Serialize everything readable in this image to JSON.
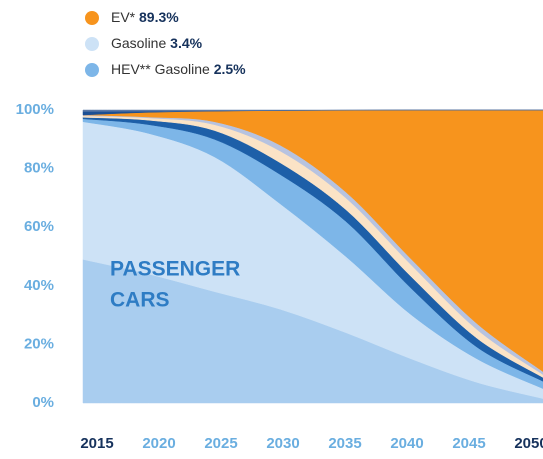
{
  "chart_data": {
    "type": "stacked_area",
    "categories": [
      "2015",
      "2020",
      "2025",
      "2030",
      "2035",
      "2040",
      "2045",
      "2050"
    ],
    "annotation": [
      "PASSENGER",
      "CARS"
    ],
    "ylim": [
      0,
      100
    ],
    "yticks": [
      {
        "value": 0,
        "label": "0%"
      },
      {
        "value": 20,
        "label": "20%"
      },
      {
        "value": 40,
        "label": "40%"
      },
      {
        "value": 60,
        "label": "60%"
      },
      {
        "value": 80,
        "label": "80%"
      },
      {
        "value": 100,
        "label": "100%"
      }
    ],
    "legend_order": [
      6,
      1,
      2
    ],
    "series": [
      {
        "color": "#a9cdef",
        "values": [
          49,
          44,
          38,
          32,
          24,
          15,
          7,
          1.5
        ]
      },
      {
        "name": "Gasoline",
        "legend_label": "3.4%",
        "color": "#cde2f6",
        "values": [
          47,
          48,
          46,
          36,
          26,
          15,
          8,
          3.4
        ]
      },
      {
        "name": "HEV** Gasoline",
        "legend_label": "2.5%",
        "color": "#7db6e8",
        "values": [
          1,
          3,
          6,
          10,
          12,
          9,
          4,
          2.5
        ]
      },
      {
        "color": "#1d5fa8",
        "values": [
          0.5,
          1.5,
          3,
          4,
          4,
          4,
          3,
          1.3
        ]
      },
      {
        "color": "#fbe3c6",
        "values": [
          0.5,
          0.8,
          2,
          4,
          4,
          4,
          3,
          1.0
        ]
      },
      {
        "color": "#b7c3e0",
        "values": [
          0.3,
          0.3,
          1,
          2,
          2,
          2,
          2,
          1.0
        ]
      },
      {
        "name": "EV*",
        "legend_label": "89.3%",
        "color": "#f7941d",
        "values": [
          0,
          1.6,
          3.6,
          11.8,
          27.9,
          51,
          73,
          89.3
        ]
      },
      {
        "color": "#1b4f94",
        "values": [
          1.2,
          0.4,
          0.1,
          0.05,
          0.05,
          0,
          0,
          0
        ]
      },
      {
        "color": "#5a78a6",
        "values": [
          0.5,
          0.4,
          0.3,
          0.15,
          0.05,
          0,
          0,
          0
        ]
      }
    ]
  }
}
